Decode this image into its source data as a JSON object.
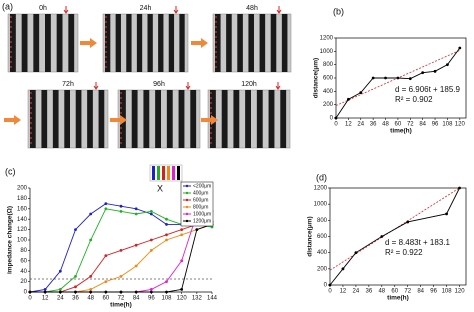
{
  "panel_a": {
    "label": "(a)",
    "images": [
      "0h",
      "24h",
      "48h",
      "72h",
      "96h",
      "120h"
    ]
  },
  "chart_data": [
    {
      "type": "line",
      "panel_label": "(b)",
      "xlabel": "time(h)",
      "ylabel": "distance(μm)",
      "x": [
        0,
        12,
        24,
        36,
        48,
        60,
        72,
        84,
        96,
        108,
        120
      ],
      "series": [
        {
          "color": "#000000",
          "values": [
            0,
            280,
            380,
            600,
            600,
            600,
            590,
            680,
            700,
            800,
            1050
          ]
        }
      ],
      "trendline": {
        "x": [
          0,
          120
        ],
        "values": [
          185.9,
          1014.6
        ],
        "color": "#d62728"
      },
      "annotations": [
        "d = 6.906t + 185.9",
        "R² = 0.902"
      ],
      "xlim": [
        0,
        126
      ],
      "ylim": [
        0,
        1200
      ],
      "xticks": [
        0,
        12,
        24,
        36,
        48,
        60,
        72,
        84,
        96,
        108,
        120
      ],
      "yticks": [
        0,
        200,
        400,
        600,
        800,
        1000,
        1200
      ]
    },
    {
      "type": "line",
      "panel_label": "(c)",
      "xlabel": "time(h)",
      "ylabel": "impedance change(Ω)",
      "inset_label": "X",
      "x": [
        0,
        12,
        24,
        36,
        48,
        60,
        72,
        84,
        96,
        108,
        120,
        132,
        144
      ],
      "series": [
        {
          "name": "<200μm",
          "color": "#1f1fd0",
          "values": [
            0,
            5,
            40,
            120,
            150,
            170,
            165,
            160,
            150,
            130,
            130,
            135,
            135
          ]
        },
        {
          "name": "400μm",
          "color": "#22b022",
          "values": [
            0,
            0,
            5,
            30,
            100,
            160,
            155,
            150,
            155,
            140,
            130,
            130,
            125
          ]
        },
        {
          "name": "600μm",
          "color": "#d62020",
          "values": [
            0,
            0,
            0,
            10,
            30,
            70,
            80,
            90,
            100,
            110,
            120,
            130,
            130
          ]
        },
        {
          "name": "800μm",
          "color": "#f08a10",
          "values": [
            0,
            0,
            0,
            0,
            5,
            20,
            30,
            50,
            80,
            100,
            110,
            120,
            130
          ]
        },
        {
          "name": "1000μm",
          "color": "#e020d0",
          "values": [
            0,
            0,
            0,
            0,
            0,
            0,
            0,
            0,
            5,
            20,
            60,
            150,
            155
          ]
        },
        {
          "name": "1200μm",
          "color": "#000000",
          "values": [
            0,
            0,
            0,
            0,
            0,
            0,
            0,
            0,
            0,
            0,
            5,
            120,
            130
          ]
        }
      ],
      "reference_line": 25,
      "xlim": [
        0,
        144
      ],
      "ylim": [
        0,
        200
      ],
      "xticks": [
        0,
        12,
        24,
        36,
        48,
        60,
        72,
        84,
        96,
        108,
        120,
        132,
        144
      ],
      "yticks": [
        0,
        20,
        40,
        60,
        80,
        100,
        120,
        140,
        160,
        180,
        200
      ]
    },
    {
      "type": "line",
      "panel_label": "(d)",
      "xlabel": "time(h)",
      "ylabel": "distance(μm)",
      "x": [
        0,
        12,
        24,
        48,
        72,
        108,
        120
      ],
      "series": [
        {
          "color": "#000000",
          "values": [
            0,
            200,
            400,
            600,
            780,
            880,
            1200
          ]
        }
      ],
      "trendline": {
        "x": [
          0,
          120
        ],
        "values": [
          183.1,
          1201.1
        ],
        "color": "#d62728"
      },
      "annotations": [
        "d = 8.483t + 183.1",
        "R² = 0.922"
      ],
      "xlim": [
        0,
        126
      ],
      "ylim": [
        0,
        1200
      ],
      "xticks": [
        0,
        12,
        24,
        36,
        48,
        60,
        72,
        84,
        96,
        108,
        120
      ],
      "yticks": [
        0,
        200,
        400,
        600,
        800,
        1000,
        1200
      ]
    }
  ]
}
